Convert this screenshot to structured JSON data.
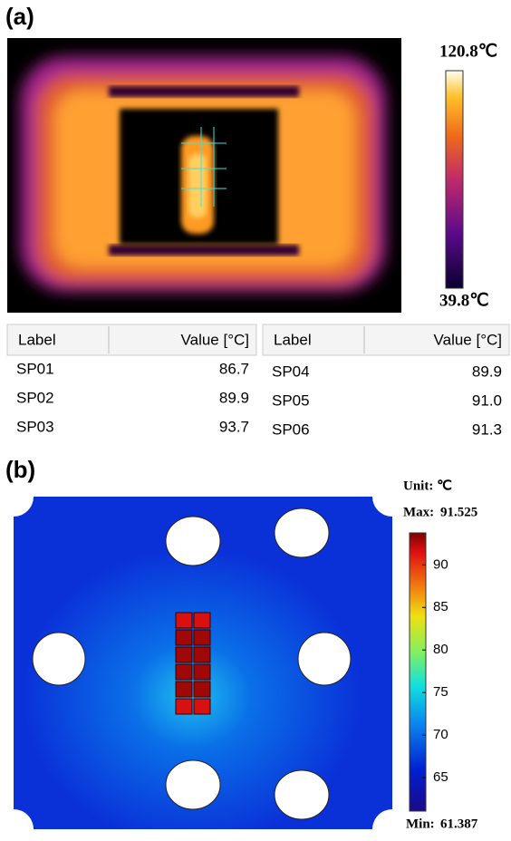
{
  "panel_a": {
    "label": "(a)",
    "colorbar": {
      "max_label": "120.8℃",
      "min_label": "39.8℃"
    },
    "table_left": {
      "headers": [
        "Label",
        "Value [°C]"
      ],
      "rows": [
        [
          "SP01",
          "86.7"
        ],
        [
          "SP02",
          "89.9"
        ],
        [
          "SP03",
          "93.7"
        ]
      ]
    },
    "table_right": {
      "headers": [
        "Label",
        "Value [°C]"
      ],
      "rows": [
        [
          "SP04",
          "89.9"
        ],
        [
          "SP05",
          "91.0"
        ],
        [
          "SP06",
          "91.3"
        ]
      ]
    }
  },
  "panel_b": {
    "label": "(b)",
    "unit": "Unit:  ℃",
    "colorbar": {
      "max": {
        "label": "Max:",
        "value": 91.525
      },
      "min": {
        "label": "Min:",
        "value": 61.387
      },
      "ticks": [
        90,
        85,
        80,
        75,
        70,
        65
      ]
    }
  }
}
